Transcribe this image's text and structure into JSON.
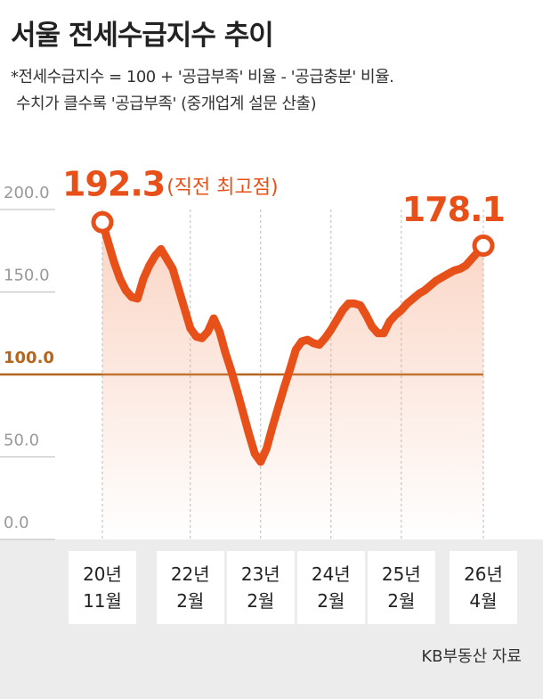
{
  "chart_data": {
    "type": "line",
    "title": "서울 전세수급지수 추이",
    "subtitle": [
      "*전세수급지수 = 100 + '공급부족' 비율 - '공급충분' 비율.",
      "수치가 클수록 '공급부족' (중개업계 설문 산출)"
    ],
    "peak_note": "(직전 최고점)",
    "source": "KB부동산 자료",
    "x": [
      "2020-11",
      "2020-12",
      "2021-01",
      "2021-02",
      "2021-03",
      "2021-04",
      "2021-05",
      "2021-06",
      "2021-07",
      "2021-08",
      "2021-09",
      "2021-10",
      "2021-11",
      "2021-12",
      "2022-01",
      "2022-02",
      "2022-03",
      "2022-04",
      "2022-05",
      "2022-06",
      "2022-07",
      "2022-08",
      "2022-09",
      "2022-10",
      "2022-11",
      "2022-12",
      "2023-01",
      "2023-02",
      "2023-03",
      "2023-04",
      "2023-05",
      "2023-06",
      "2023-07",
      "2023-08",
      "2023-09",
      "2023-10",
      "2023-11",
      "2023-12",
      "2024-01",
      "2024-02",
      "2024-03",
      "2024-04",
      "2024-05",
      "2024-06",
      "2024-07",
      "2024-08",
      "2024-09",
      "2024-10",
      "2024-11",
      "2024-12",
      "2025-01",
      "2025-02",
      "2025-03",
      "2025-04",
      "2025-05",
      "2025-06",
      "2025-07",
      "2025-08",
      "2025-09",
      "2025-10",
      "2025-11",
      "2025-12",
      "2026-01",
      "2026-02",
      "2026-03",
      "2026-04"
    ],
    "series": [
      {
        "name": "서울 전세수급지수",
        "color": "#e8501a",
        "values": [
          192.3,
          180,
          168,
          158,
          151,
          147,
          146,
          158,
          166,
          172,
          176,
          170,
          164,
          152,
          140,
          128,
          123,
          122,
          126,
          134,
          126,
          113,
          102,
          90,
          77,
          64,
          52,
          47,
          55,
          68,
          80,
          92,
          103,
          115,
          120,
          121,
          119,
          118,
          122,
          127,
          133,
          139,
          143,
          143,
          142,
          136,
          129,
          125,
          125,
          132,
          136,
          139,
          143,
          146,
          149,
          151,
          154,
          157,
          159,
          161,
          163,
          164,
          166,
          170,
          174,
          178.1
        ]
      }
    ],
    "xlim": [
      "2020-11",
      "2026-04"
    ],
    "xticks": [
      {
        "value": "2020-11",
        "label": "20년\n11월"
      },
      {
        "value": "2022-02",
        "label": "22년\n2월"
      },
      {
        "value": "2023-02",
        "label": "23년\n2월"
      },
      {
        "value": "2024-02",
        "label": "24년\n2월"
      },
      {
        "value": "2025-02",
        "label": "25년\n2월"
      },
      {
        "value": "2026-04",
        "label": "26년\n4월"
      }
    ],
    "ylim": [
      0,
      200
    ],
    "yticks": [
      {
        "value": 0,
        "label": "0.0"
      },
      {
        "value": 50,
        "label": "50.0"
      },
      {
        "value": 100,
        "label": "100.0"
      },
      {
        "value": 150,
        "label": "150.0"
      },
      {
        "value": 200,
        "label": "200.0"
      }
    ],
    "reference_line": 100,
    "reference_color": "#b5651d"
  }
}
